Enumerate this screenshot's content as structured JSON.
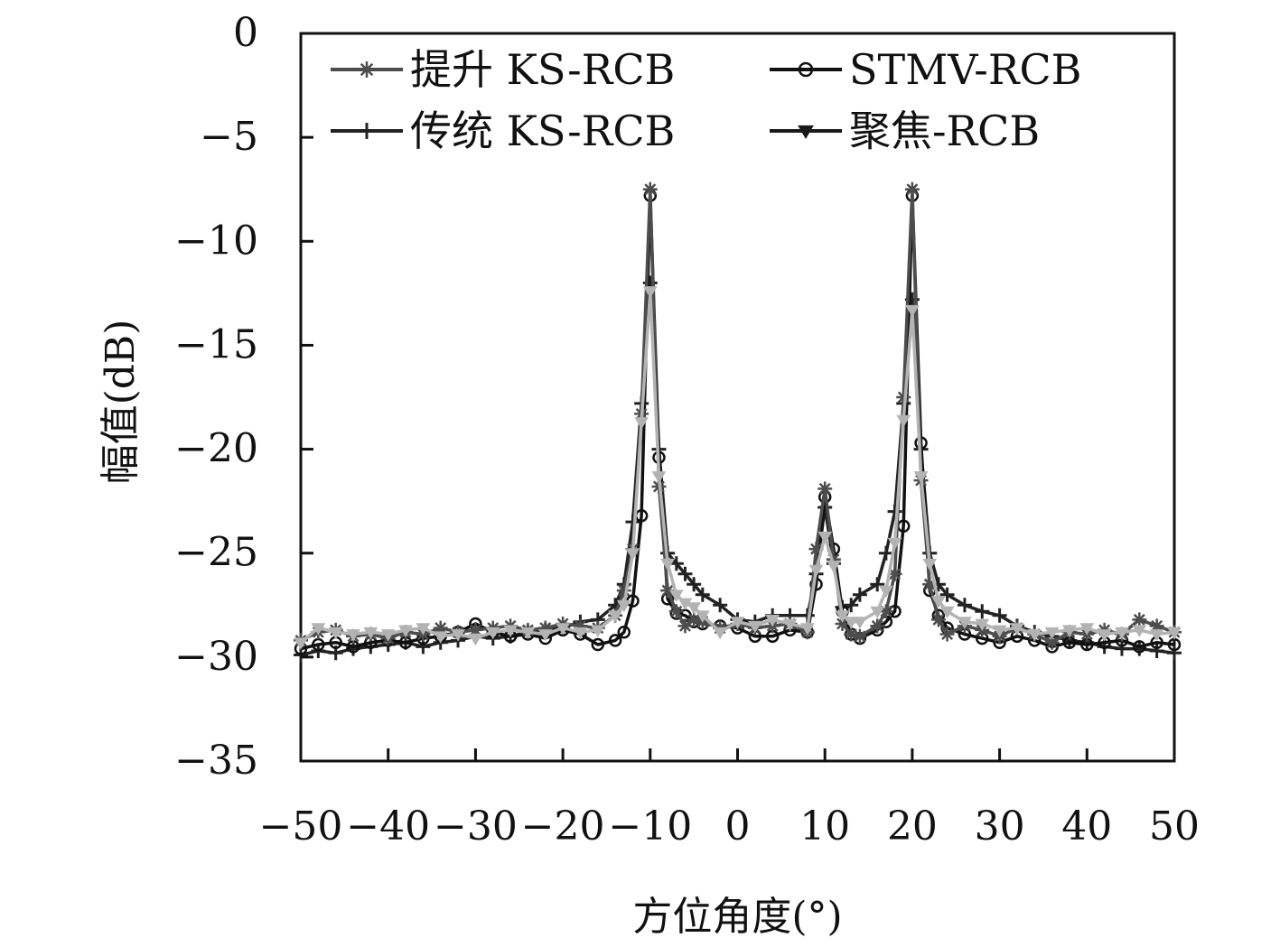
{
  "chart_data": {
    "type": "line",
    "title": "",
    "xlabel": "方位角度(°)",
    "ylabel": "幅值(dB)",
    "xlim": [
      -50,
      50
    ],
    "ylim": [
      -35,
      0
    ],
    "xticks": [
      -50,
      -40,
      -30,
      -20,
      -10,
      0,
      10,
      20,
      30,
      40,
      50
    ],
    "yticks": [
      0,
      -5,
      -10,
      -15,
      -20,
      -25,
      -30,
      -35
    ],
    "xtick_labels": [
      "−50",
      "−40",
      "−30",
      "−20",
      "−10",
      "0",
      "10",
      "20",
      "30",
      "40",
      "50"
    ],
    "ytick_labels": [
      "0",
      "−5",
      "−10",
      "−15",
      "−20",
      "−25",
      "−30",
      "−35"
    ],
    "legend_position": "top",
    "x": [
      -50,
      -48,
      -46,
      -44,
      -42,
      -40,
      -38,
      -36,
      -34,
      -32,
      -30,
      -28,
      -26,
      -24,
      -22,
      -20,
      -18,
      -16,
      -14,
      -13,
      -12,
      -11,
      -10,
      -9,
      -8,
      -7,
      -6,
      -5,
      -4,
      -2,
      0,
      2,
      4,
      6,
      8,
      9,
      10,
      11,
      12,
      13,
      14,
      16,
      17,
      18,
      19,
      20,
      21,
      22,
      23,
      24,
      26,
      28,
      30,
      32,
      34,
      36,
      38,
      40,
      42,
      44,
      46,
      48,
      50
    ],
    "series": [
      {
        "name": "提升 KS-RCB",
        "color": "#4d4d4d",
        "marker": "star",
        "values": [
          -29.2,
          -28.8,
          -28.7,
          -29.0,
          -28.9,
          -29.1,
          -28.8,
          -28.9,
          -28.6,
          -28.8,
          -28.7,
          -28.6,
          -28.5,
          -28.7,
          -28.6,
          -28.4,
          -28.5,
          -28.6,
          -28.0,
          -26.8,
          -24.8,
          -18.3,
          -7.5,
          -21.8,
          -26.8,
          -27.8,
          -28.5,
          -28.2,
          -28.3,
          -28.6,
          -28.4,
          -28.6,
          -28.5,
          -28.4,
          -28.8,
          -24.8,
          -21.9,
          -25.3,
          -28.4,
          -28.9,
          -29.0,
          -28.5,
          -27.8,
          -26.0,
          -17.5,
          -7.5,
          -21.5,
          -26.5,
          -28.2,
          -28.9,
          -28.5,
          -28.7,
          -29.0,
          -28.6,
          -28.9,
          -29.3,
          -28.8,
          -28.9,
          -28.7,
          -28.9,
          -28.2,
          -28.5,
          -28.8
        ]
      },
      {
        "name": "STMV-RCB",
        "color": "#111111",
        "marker": "circle",
        "values": [
          -29.6,
          -29.4,
          -29.3,
          -29.5,
          -29.3,
          -29.2,
          -29.3,
          -29.1,
          -29.0,
          -28.8,
          -28.4,
          -28.8,
          -29.0,
          -28.9,
          -29.1,
          -28.7,
          -28.9,
          -29.4,
          -29.2,
          -28.8,
          -27.3,
          -23.2,
          -7.8,
          -20.4,
          -27.2,
          -27.9,
          -28.0,
          -28.3,
          -28.4,
          -28.5,
          -28.6,
          -29.0,
          -29.0,
          -28.7,
          -28.8,
          -26.5,
          -22.3,
          -24.8,
          -27.8,
          -28.9,
          -29.1,
          -28.7,
          -28.3,
          -27.8,
          -23.7,
          -7.8,
          -19.7,
          -26.8,
          -28.0,
          -28.6,
          -28.9,
          -29.1,
          -29.3,
          -29.0,
          -29.2,
          -29.5,
          -29.3,
          -29.4,
          -29.3,
          -29.2,
          -29.5,
          -29.3,
          -29.4
        ]
      },
      {
        "name": "传统 KS-RCB",
        "color": "#222222",
        "marker": "plus",
        "values": [
          -29.9,
          -29.7,
          -29.8,
          -29.6,
          -29.5,
          -29.4,
          -29.3,
          -29.5,
          -29.3,
          -29.2,
          -29.0,
          -29.1,
          -29.0,
          -28.8,
          -28.7,
          -28.6,
          -28.3,
          -28.2,
          -27.5,
          -26.5,
          -23.5,
          -17.8,
          -12.0,
          -20.0,
          -25.0,
          -25.5,
          -26.0,
          -26.5,
          -27.0,
          -27.5,
          -28.2,
          -28.3,
          -28.0,
          -28.0,
          -28.0,
          -26.0,
          -22.8,
          -25.5,
          -27.6,
          -27.5,
          -27.0,
          -26.5,
          -25.0,
          -23.0,
          -17.8,
          -12.8,
          -20.0,
          -25.0,
          -26.5,
          -27.0,
          -27.5,
          -27.8,
          -28.0,
          -28.5,
          -28.8,
          -29.0,
          -29.2,
          -29.3,
          -29.5,
          -29.6,
          -29.6,
          -29.7,
          -29.8
        ]
      },
      {
        "name": "聚焦-RCB",
        "color": "#b3b3b3",
        "legend_color": "#1a1a1a",
        "marker": "triangle-down",
        "values": [
          -29.3,
          -28.6,
          -28.8,
          -28.9,
          -28.8,
          -28.9,
          -28.7,
          -28.6,
          -29.0,
          -28.9,
          -29.1,
          -28.8,
          -28.7,
          -28.8,
          -28.9,
          -28.6,
          -28.8,
          -28.7,
          -28.0,
          -27.5,
          -25.0,
          -18.7,
          -12.4,
          -21.3,
          -25.5,
          -27.0,
          -27.4,
          -27.6,
          -28.0,
          -28.8,
          -28.3,
          -28.5,
          -28.2,
          -28.4,
          -28.6,
          -25.8,
          -24.2,
          -25.6,
          -28.0,
          -28.3,
          -28.3,
          -27.8,
          -26.8,
          -24.5,
          -18.6,
          -13.3,
          -21.3,
          -25.5,
          -27.3,
          -27.8,
          -28.3,
          -28.4,
          -28.7,
          -28.6,
          -28.9,
          -28.8,
          -28.7,
          -28.6,
          -28.9,
          -28.8,
          -28.7,
          -28.9,
          -28.8
        ]
      }
    ]
  }
}
